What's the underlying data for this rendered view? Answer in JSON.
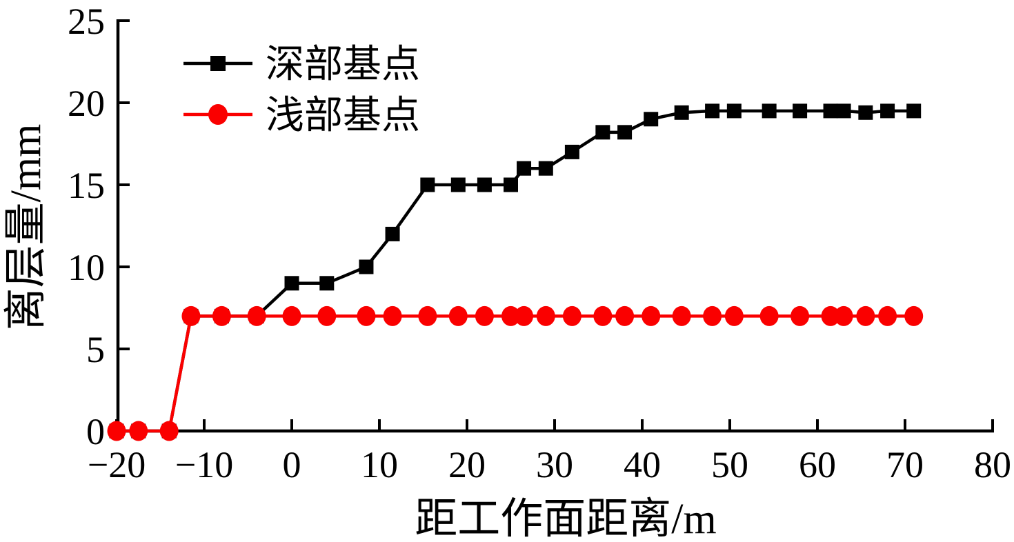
{
  "chart_data": {
    "type": "line",
    "title": "",
    "xlabel": "距工作面距离/m",
    "ylabel": "离层量/mm",
    "xlim": [
      -20,
      80
    ],
    "ylim": [
      0,
      25
    ],
    "grid": false,
    "legend_position": "top-left-inside",
    "xticks": [
      -20,
      -10,
      0,
      10,
      20,
      30,
      40,
      50,
      60,
      70,
      80
    ],
    "xtick_labels": [
      "−20",
      "−10",
      "0",
      "10",
      "20",
      "30",
      "40",
      "50",
      "60",
      "70",
      "80"
    ],
    "yticks": [
      0,
      5,
      10,
      15,
      20,
      25
    ],
    "ytick_labels": [
      "0",
      "5",
      "10",
      "15",
      "20",
      "25"
    ],
    "x": [
      -20,
      -17.5,
      -14,
      -11.5,
      -8,
      -4,
      0,
      4,
      8.5,
      11.5,
      15.5,
      19,
      22,
      25,
      26.5,
      29,
      32,
      35.5,
      38,
      41,
      44.5,
      48,
      50.5,
      54.5,
      58,
      61.5,
      63,
      65.5,
      68,
      71
    ],
    "series": [
      {
        "name": "深部基点",
        "marker": "square",
        "color": "#000000",
        "values": [
          0,
          0,
          0,
          7,
          7,
          7,
          9,
          9,
          10,
          12,
          15,
          15,
          15,
          15,
          16,
          16,
          17,
          18.2,
          18.2,
          19,
          19.4,
          19.5,
          19.5,
          19.5,
          19.5,
          19.5,
          19.5,
          19.4,
          19.5,
          19.5
        ]
      },
      {
        "name": "浅部基点",
        "marker": "circle",
        "color": "#fa0000",
        "values": [
          0,
          0,
          0,
          7,
          7,
          7,
          7,
          7,
          7,
          7,
          7,
          7,
          7,
          7,
          7,
          7,
          7,
          7,
          7,
          7,
          7,
          7,
          7,
          7,
          7,
          7,
          7,
          7,
          7,
          7
        ]
      }
    ],
    "colors": {
      "axis": "#000000",
      "background": "#ffffff",
      "deep_series": "#000000",
      "shallow_series": "#fa0000"
    }
  }
}
